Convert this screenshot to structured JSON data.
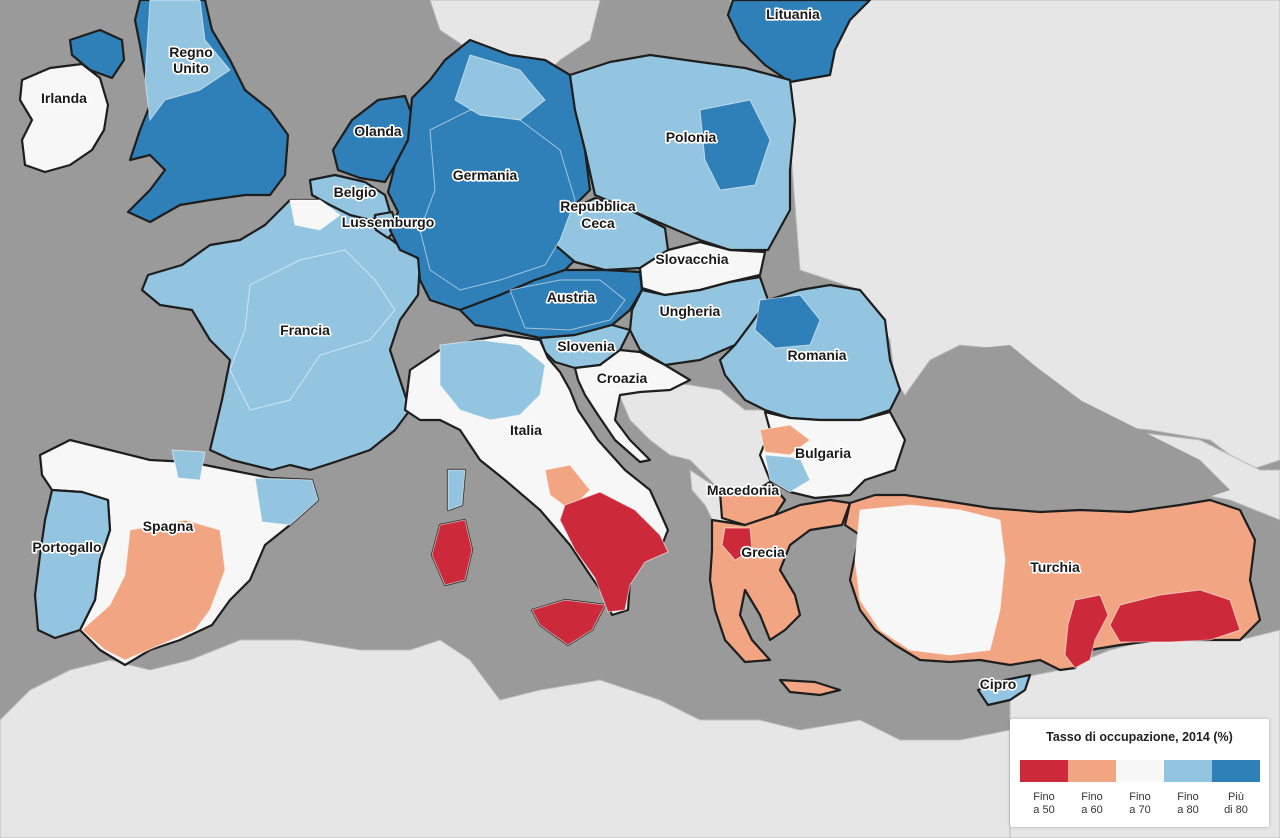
{
  "colors": {
    "sea": "#9a9a9a",
    "land_outside": "#e6e6e6",
    "c50": "#cc2a3a",
    "c60": "#f2a582",
    "c70": "#f7f7f7",
    "c80": "#93c5e0",
    "c80plus": "#2f7fb8"
  },
  "countries": [
    {
      "name": "Lituania",
      "level": "c80plus"
    },
    {
      "name": "Regno",
      "name2": "Unito",
      "level": "c80plus"
    },
    {
      "name": "Irlanda",
      "level": "c70"
    },
    {
      "name": "Olanda",
      "level": "c80plus"
    },
    {
      "name": "Polonia",
      "level": "c80"
    },
    {
      "name": "Germania",
      "level": "c80plus"
    },
    {
      "name": "Belgio",
      "level": "c80"
    },
    {
      "name": "Repubblica",
      "name2": "Ceca",
      "level": "c80"
    },
    {
      "name": "Lussemburgo",
      "level": "c80"
    },
    {
      "name": "Slovacchia",
      "level": "c70"
    },
    {
      "name": "Austria",
      "level": "c80plus"
    },
    {
      "name": "Francia",
      "level": "c80"
    },
    {
      "name": "Ungheria",
      "level": "c80"
    },
    {
      "name": "Slovenia",
      "level": "c80"
    },
    {
      "name": "Romania",
      "level": "c80"
    },
    {
      "name": "Croazia",
      "level": "c70"
    },
    {
      "name": "Italia",
      "level": "c70"
    },
    {
      "name": "Bulgaria",
      "level": "c70"
    },
    {
      "name": "Macedonia",
      "level": "c60"
    },
    {
      "name": "Spagna",
      "level": "c70"
    },
    {
      "name": "Portogallo",
      "level": "c80"
    },
    {
      "name": "Grecia",
      "level": "c60"
    },
    {
      "name": "Turchia",
      "level": "c60"
    },
    {
      "name": "Cipro",
      "level": "c80"
    }
  ],
  "legend": {
    "title": "Tasso di occupazione, 2014 (%)",
    "classes": [
      {
        "line1": "Fino",
        "line2": "a 50",
        "color": "#cc2a3a"
      },
      {
        "line1": "Fino",
        "line2": "a 60",
        "color": "#f2a582"
      },
      {
        "line1": "Fino",
        "line2": "a 70",
        "color": "#f7f7f7"
      },
      {
        "line1": "Fino",
        "line2": "a 80",
        "color": "#93c5e0"
      },
      {
        "line1": "Più",
        "line2": "di 80",
        "color": "#2f7fb8"
      }
    ]
  }
}
